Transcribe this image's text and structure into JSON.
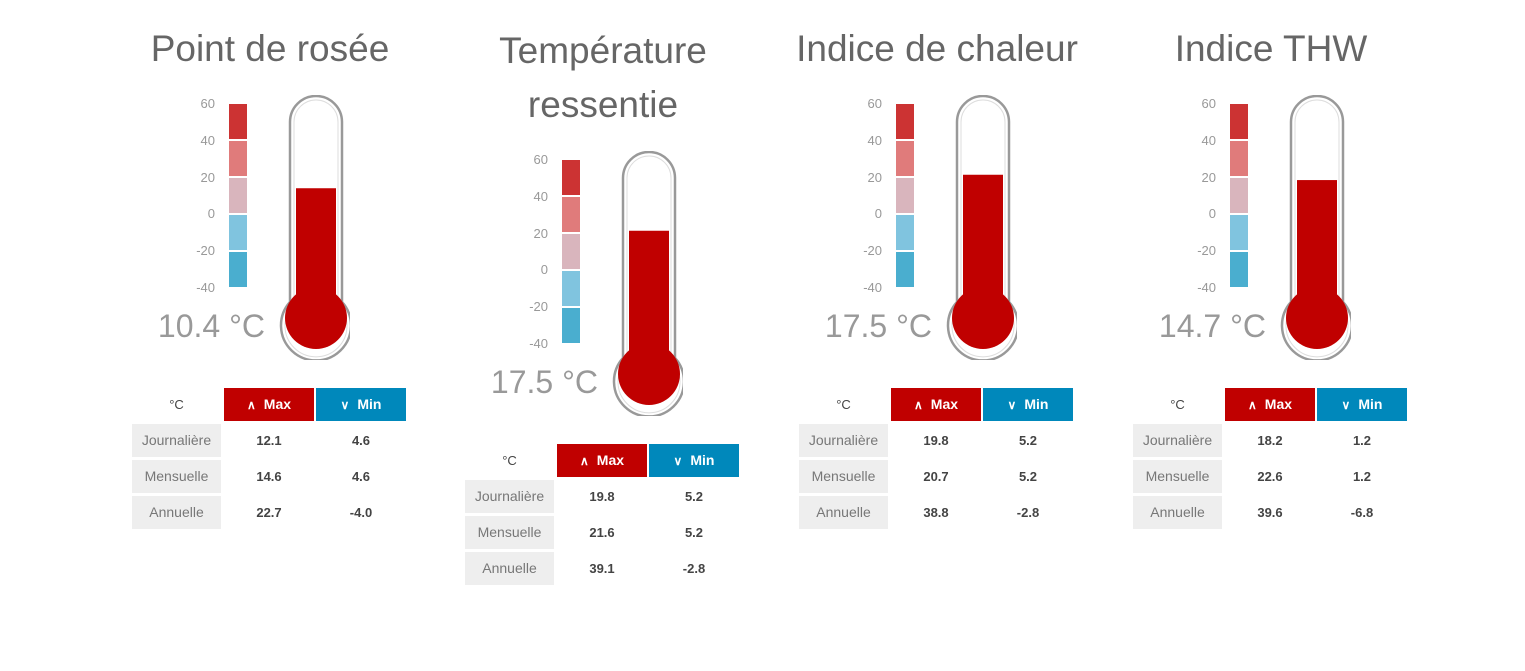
{
  "colors": {
    "max": "#c00000",
    "min": "#0088bb",
    "fill": "#c00000"
  },
  "scale": {
    "ticks": [
      "60",
      "40",
      "20",
      "0",
      "-20",
      "-40"
    ],
    "segment_colors": [
      "#cc3333",
      "#e07b7b",
      "#d9b5bd",
      "#80c4df",
      "#4aaecf"
    ]
  },
  "table_headers": {
    "unit": "°C",
    "max": "Max",
    "min": "Min",
    "max_icon": "chevron-up-icon",
    "min_icon": "chevron-down-icon"
  },
  "row_labels": [
    "Journalière",
    "Mensuelle",
    "Annuelle"
  ],
  "widgets": [
    {
      "title": "Point de rosée",
      "value": 10.4,
      "value_label": "10.4 °C",
      "rows": [
        {
          "max": "12.1",
          "min": "4.6"
        },
        {
          "max": "14.6",
          "min": "4.6"
        },
        {
          "max": "22.7",
          "min": "-4.0"
        }
      ]
    },
    {
      "title": "Température ressentie",
      "value": 17.5,
      "value_label": "17.5 °C",
      "rows": [
        {
          "max": "19.8",
          "min": "5.2"
        },
        {
          "max": "21.6",
          "min": "5.2"
        },
        {
          "max": "39.1",
          "min": "-2.8"
        }
      ]
    },
    {
      "title": "Indice de chaleur",
      "value": 17.5,
      "value_label": "17.5 °C",
      "rows": [
        {
          "max": "19.8",
          "min": "5.2"
        },
        {
          "max": "20.7",
          "min": "5.2"
        },
        {
          "max": "38.8",
          "min": "-2.8"
        }
      ]
    },
    {
      "title": "Indice THW",
      "value": 14.7,
      "value_label": "14.7 °C",
      "rows": [
        {
          "max": "18.2",
          "min": "1.2"
        },
        {
          "max": "22.6",
          "min": "1.2"
        },
        {
          "max": "39.6",
          "min": "-6.8"
        }
      ]
    }
  ]
}
